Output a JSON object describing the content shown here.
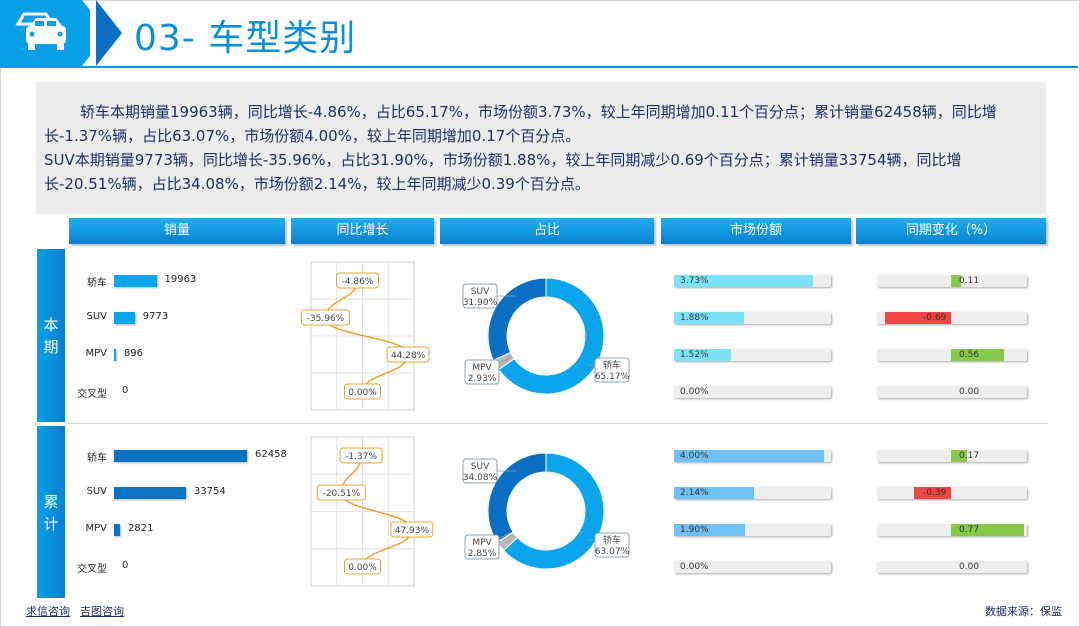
{
  "header": {
    "title": "03- 车型类别"
  },
  "summary": {
    "p1": "轿车本期销量19963辆，同比增长-4.86%，占比65.17%，市场份额3.73%，较上年同期增加0.11个百分点；累计销量62458辆，同比增长-1.37%辆，占比63.07%，市场份额4.00%，较上年同期增加0.17个百分点。",
    "p2": "SUV本期销量9773辆，同比增长-35.96%，占比31.90%，市场份额1.88%，较上年同期减少0.69个百分点；累计销量33754辆，同比增长-20.51%辆，占比34.08%，市场份额2.14%，较上年同期减少0.39个百分点。"
  },
  "columns": [
    "销量",
    "同比增长",
    "占比",
    "市场份额",
    "同期变化（%）"
  ],
  "sections": [
    {
      "name_top": "本",
      "name_bottom": "期"
    },
    {
      "name_top": "累",
      "name_bottom": "计"
    }
  ],
  "colors": {
    "sales_current": "#0aa5ec",
    "sales_cumulative": "#0a73c4",
    "growth_line": "#f0a030",
    "donut_main": "#0aa5ec",
    "donut_suv": "#0a6fc2",
    "donut_mpv": "#b8b8b8",
    "share_current": "#7ee2f6",
    "share_cumulative": "#6fc0f4",
    "change_pos": "#86c84a",
    "change_neg": "#ee4444"
  },
  "chart_data": [
    {
      "type": "bar",
      "title": "销量",
      "section": "本期",
      "categories": [
        "轿车",
        "SUV",
        "MPV",
        "交叉型"
      ],
      "values": [
        19963,
        9773,
        896,
        0
      ],
      "value_labels": [
        "19963",
        "9773",
        "896",
        "0"
      ]
    },
    {
      "type": "line",
      "title": "同比增长",
      "section": "本期",
      "categories": [
        "轿车",
        "SUV",
        "MPV",
        "交叉型"
      ],
      "values": [
        -4.86,
        -35.96,
        44.28,
        0.0
      ],
      "value_labels": [
        "-4.86%",
        "-35.96%",
        "44.28%",
        "0.00%"
      ]
    },
    {
      "type": "pie",
      "title": "占比",
      "section": "本期",
      "categories": [
        "轿车",
        "SUV",
        "MPV"
      ],
      "values": [
        65.17,
        31.9,
        2.93
      ],
      "value_labels": [
        "65.17%",
        "31.90%",
        "2.93%"
      ]
    },
    {
      "type": "bar",
      "title": "市场份额",
      "section": "本期",
      "categories": [
        "轿车",
        "SUV",
        "MPV",
        "交叉型"
      ],
      "values": [
        3.73,
        1.88,
        1.52,
        0.0
      ],
      "value_labels": [
        "3.73%",
        "1.88%",
        "1.52%",
        "0.00%"
      ]
    },
    {
      "type": "bar",
      "title": "同期变化（%）",
      "section": "本期",
      "categories": [
        "轿车",
        "SUV",
        "MPV",
        "交叉型"
      ],
      "values": [
        0.11,
        -0.69,
        0.56,
        0.0
      ],
      "value_labels": [
        "0.11",
        "-0.69",
        "0.56",
        "0.00"
      ]
    },
    {
      "type": "bar",
      "title": "销量",
      "section": "累计",
      "categories": [
        "轿车",
        "SUV",
        "MPV",
        "交叉型"
      ],
      "values": [
        62458,
        33754,
        2821,
        0
      ],
      "value_labels": [
        "62458",
        "33754",
        "2821",
        "0"
      ]
    },
    {
      "type": "line",
      "title": "同比增长",
      "section": "累计",
      "categories": [
        "轿车",
        "SUV",
        "MPV",
        "交叉型"
      ],
      "values": [
        -1.37,
        -20.51,
        47.93,
        0.0
      ],
      "value_labels": [
        "-1.37%",
        "-20.51%",
        "47.93%",
        "0.00%"
      ]
    },
    {
      "type": "pie",
      "title": "占比",
      "section": "累计",
      "categories": [
        "轿车",
        "SUV",
        "MPV"
      ],
      "values": [
        63.07,
        34.08,
        2.85
      ],
      "value_labels": [
        "63.07%",
        "34.08%",
        "2.85%"
      ]
    },
    {
      "type": "bar",
      "title": "市场份额",
      "section": "累计",
      "categories": [
        "轿车",
        "SUV",
        "MPV",
        "交叉型"
      ],
      "values": [
        4.0,
        2.14,
        1.9,
        0.0
      ],
      "value_labels": [
        "4.00%",
        "2.14%",
        "1.90%",
        "0.00%"
      ]
    },
    {
      "type": "bar",
      "title": "同期变化（%）",
      "section": "累计",
      "categories": [
        "轿车",
        "SUV",
        "MPV",
        "交叉型"
      ],
      "values": [
        0.17,
        -0.39,
        0.77,
        0.0
      ],
      "value_labels": [
        "0.17",
        "-0.39",
        "0.77",
        "0.00"
      ]
    }
  ],
  "footer": {
    "link1": "求信咨询",
    "link2": "吉图咨询",
    "source": "数据来源：保监"
  }
}
